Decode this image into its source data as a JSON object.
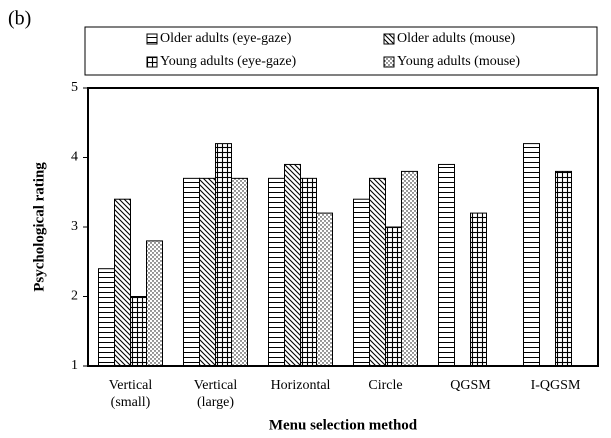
{
  "chart_data": {
    "type": "bar",
    "panel_label": "(b)",
    "xlabel": "Menu selection method",
    "ylabel": "Psychological rating",
    "categories": [
      "Vertical (small)",
      "Vertical (large)",
      "Horizontal",
      "Circle",
      "QGSM",
      "I-QGSM"
    ],
    "series": [
      {
        "name": "Older adults (eye-gaze)",
        "color": "#000000",
        "pattern": "horizontal",
        "values": [
          2.4,
          3.7,
          3.7,
          3.4,
          3.9,
          4.2
        ]
      },
      {
        "name": "Older adults (mouse)",
        "color": "#000000",
        "pattern": "diagonal",
        "values": [
          3.4,
          3.7,
          3.9,
          3.7,
          null,
          null
        ]
      },
      {
        "name": "Young adults (eye-gaze)",
        "color": "#000000",
        "pattern": "grid",
        "values": [
          2.0,
          4.2,
          3.7,
          3.0,
          3.2,
          3.8
        ]
      },
      {
        "name": "Young adults (mouse)",
        "color": "#000000",
        "pattern": "dots",
        "values": [
          2.8,
          3.7,
          3.2,
          3.8,
          null,
          null
        ]
      }
    ],
    "ylim": [
      1,
      5
    ],
    "yticks": [
      1,
      2,
      3,
      4,
      5
    ],
    "grid": false,
    "legend": "top"
  }
}
